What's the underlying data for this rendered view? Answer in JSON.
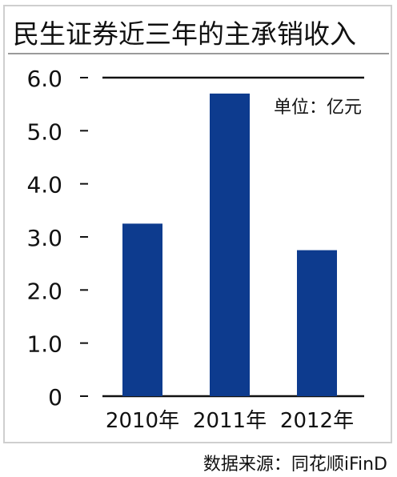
{
  "title": "民生证券近三年的主承销收入",
  "unit_note": "单位：亿元",
  "source": "数据来源：同花顺iFinD",
  "colors": {
    "bar": "#0d3b8e",
    "axis": "#111111",
    "frame": "#cfcfcf"
  },
  "chart_data": {
    "type": "bar",
    "title": "民生证券近三年的主承销收入",
    "xlabel": "",
    "ylabel": "",
    "unit": "亿元",
    "categories": [
      "2010年",
      "2011年",
      "2012年"
    ],
    "values": [
      3.25,
      5.7,
      2.75
    ],
    "ylim": [
      0,
      6.0
    ],
    "yticks": [
      0,
      1.0,
      2.0,
      3.0,
      4.0,
      5.0,
      6.0
    ],
    "ytick_labels": [
      "0",
      "1.0",
      "2.0",
      "3.0",
      "4.0",
      "5.0",
      "6.0"
    ],
    "grid": false,
    "legend": "none"
  }
}
